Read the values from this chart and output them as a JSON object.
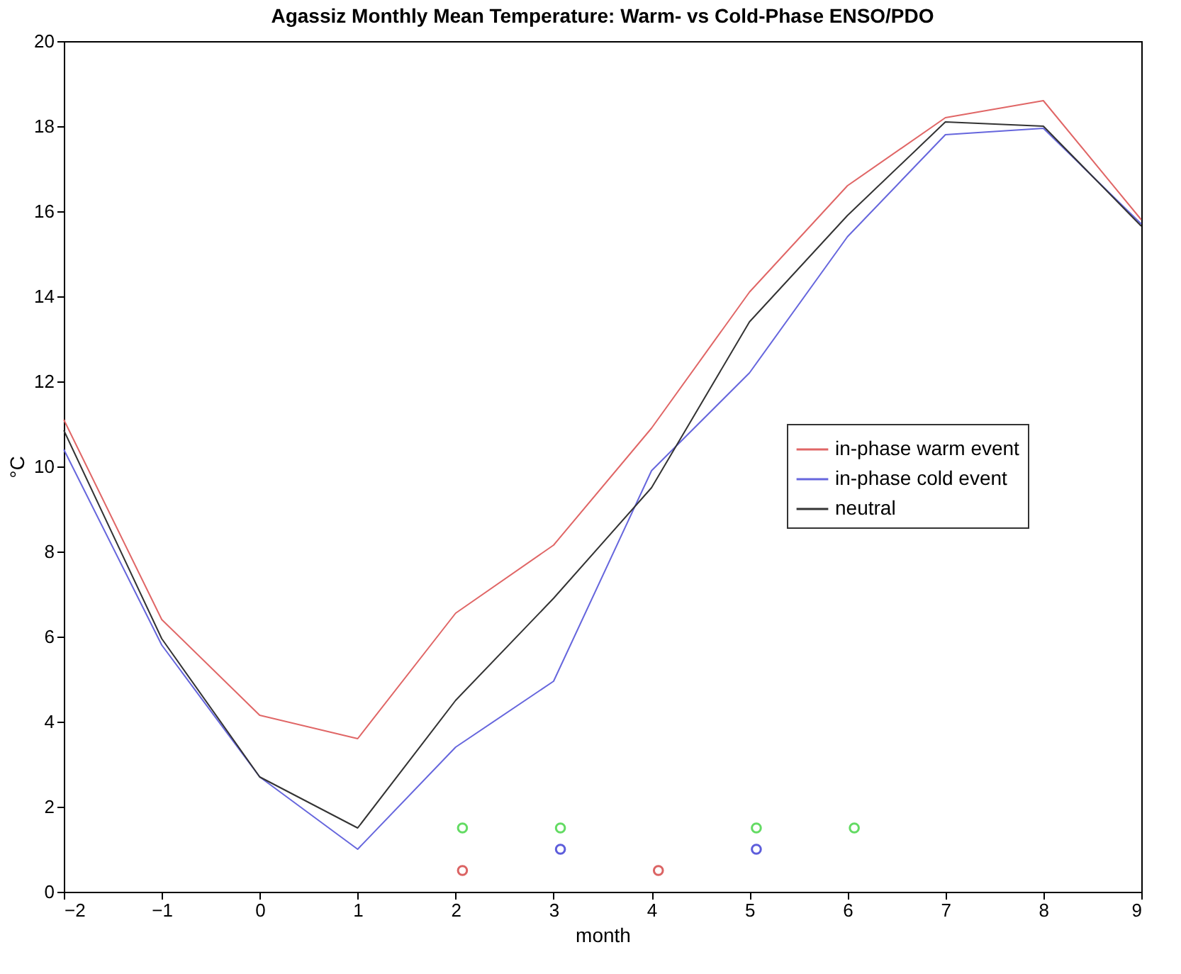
{
  "chart_data": {
    "type": "line",
    "title": "Agassiz Monthly Mean Temperature: Warm- vs Cold-Phase ENSO/PDO",
    "xlabel": "month",
    "ylabel": "°C",
    "x": [
      -2,
      -1,
      0,
      1,
      2,
      3,
      4,
      5,
      6,
      7,
      8,
      9
    ],
    "series": [
      {
        "name": "in-phase warm event",
        "color": "#e06666",
        "values": [
          11.1,
          6.4,
          4.15,
          3.6,
          6.55,
          8.15,
          10.9,
          14.1,
          16.6,
          18.2,
          18.6,
          15.8
        ]
      },
      {
        "name": "in-phase cold event",
        "color": "#6666dd",
        "values": [
          10.4,
          5.8,
          2.7,
          1.0,
          3.4,
          4.95,
          9.9,
          12.2,
          15.4,
          17.8,
          17.95,
          15.7
        ]
      },
      {
        "name": "neutral",
        "color": "#333333",
        "values": [
          10.85,
          5.95,
          2.7,
          1.5,
          4.5,
          6.9,
          9.5,
          13.4,
          15.9,
          18.1,
          18.0,
          15.65
        ]
      },
      {
        "type": "scatter",
        "marker": "circle",
        "color": "#22cc22",
        "x": [
          2.07,
          3.07,
          5.07,
          6.07
        ],
        "values": [
          1.5,
          1.5,
          1.5,
          1.5
        ]
      },
      {
        "type": "scatter",
        "marker": "circle",
        "color": "#1a1acc",
        "x": [
          3.07,
          5.07
        ],
        "values": [
          1.0,
          1.0
        ]
      },
      {
        "type": "scatter",
        "marker": "circle",
        "color": "#cc2222",
        "x": [
          2.07,
          4.07
        ],
        "values": [
          0.5,
          0.5
        ]
      }
    ],
    "xlim": [
      -2,
      9
    ],
    "xticks": [
      -2,
      -1,
      0,
      1,
      2,
      3,
      4,
      5,
      6,
      7,
      8,
      9
    ],
    "ylim": [
      0,
      20
    ],
    "yticks": [
      0,
      2,
      4,
      6,
      8,
      10,
      12,
      14,
      16,
      18,
      20
    ],
    "grid": false,
    "legend": "right",
    "marker": "none",
    "line_style": "solid"
  }
}
